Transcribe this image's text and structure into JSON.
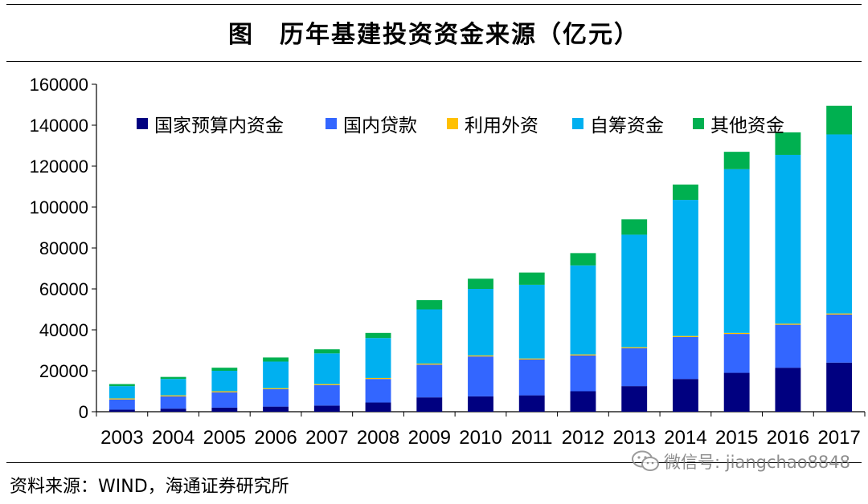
{
  "title": "图　历年基建投资资金来源（亿元）",
  "source": "资料来源：WIND，海通证券研究所",
  "watermark": {
    "text": "微信号: jiangchao8848",
    "icon": "wechat-icon"
  },
  "chart_data": {
    "type": "bar",
    "stacked": true,
    "title": "",
    "xlabel": "",
    "ylabel": "",
    "ylim": [
      0,
      160000
    ],
    "yticks": [
      0,
      20000,
      40000,
      60000,
      80000,
      100000,
      120000,
      140000,
      160000
    ],
    "grid": false,
    "legend_position": "top-left",
    "categories": [
      "2003",
      "2004",
      "2005",
      "2006",
      "2007",
      "2008",
      "2009",
      "2010",
      "2011",
      "2012",
      "2013",
      "2014",
      "2015",
      "2016",
      "2017"
    ],
    "series": [
      {
        "name": "国家预算内资金",
        "color": "#000080",
        "values": [
          1000,
          1500,
          2000,
          2500,
          3000,
          4500,
          7000,
          7500,
          8000,
          10000,
          12500,
          16000,
          19000,
          21500,
          24000
        ]
      },
      {
        "name": "国内贷款",
        "color": "#3366ff",
        "values": [
          5000,
          6000,
          7500,
          8500,
          10000,
          11500,
          16000,
          19500,
          17500,
          17500,
          18500,
          20500,
          19000,
          21000,
          23500
        ]
      },
      {
        "name": "利用外资",
        "color": "#ffc000",
        "values": [
          500,
          500,
          500,
          500,
          500,
          500,
          500,
          500,
          500,
          500,
          500,
          500,
          500,
          500,
          500
        ]
      },
      {
        "name": "自筹资金",
        "color": "#00b0f0",
        "values": [
          6000,
          8000,
          10000,
          13000,
          15000,
          19500,
          26500,
          32500,
          36000,
          43500,
          55000,
          66500,
          80000,
          82500,
          87500
        ]
      },
      {
        "name": "其他资金",
        "color": "#00b050",
        "values": [
          1000,
          1000,
          1500,
          2000,
          2000,
          2500,
          4500,
          5000,
          6000,
          6000,
          7500,
          7500,
          8500,
          11000,
          14000
        ]
      }
    ]
  }
}
